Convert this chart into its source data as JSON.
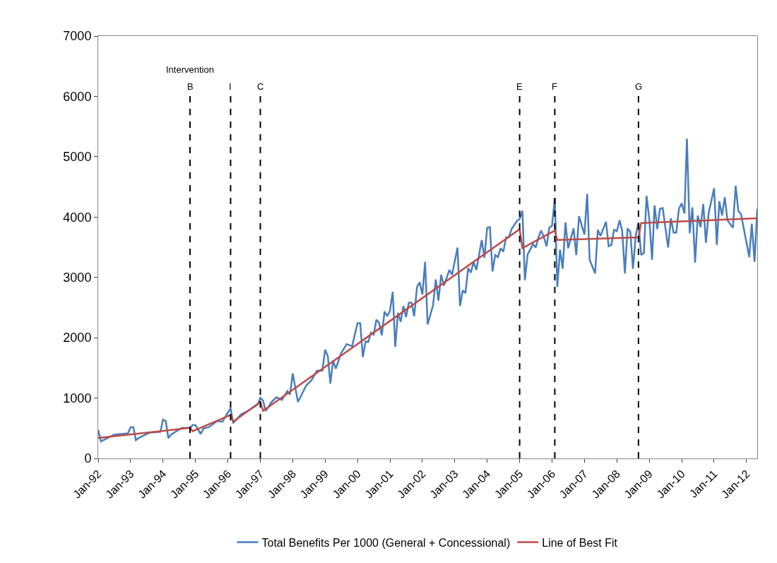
{
  "chart_data": {
    "type": "line",
    "x": [
      "1992-01",
      "1992-02",
      "1992-07",
      "1992-12",
      "1993-01",
      "1993-02",
      "1993-03",
      "1993-04",
      "1993-08",
      "1993-12",
      "1994-01",
      "1994-02",
      "1994-03",
      "1994-04",
      "1994-08",
      "1994-11",
      "1994-12",
      "1995-01",
      "1995-03",
      "1995-04",
      "1995-06",
      "1995-09",
      "1995-11",
      "1996-02",
      "1996-03",
      "1996-06",
      "1996-08",
      "1996-12",
      "1997-01",
      "1997-02",
      "1997-03",
      "1997-04",
      "1997-05",
      "1997-07",
      "1997-09",
      "1997-11",
      "1997-12",
      "1998-01",
      "1998-03",
      "1998-06",
      "1998-08",
      "1998-10",
      "1998-12",
      "1999-01",
      "1999-02",
      "1999-03",
      "1999-04",
      "1999-05",
      "1999-07",
      "1999-09",
      "1999-11",
      "2000-01",
      "2000-02",
      "2000-03",
      "2000-04",
      "2000-05",
      "2000-06",
      "2000-07",
      "2000-08",
      "2000-09",
      "2000-10",
      "2000-11",
      "2000-12",
      "2001-01",
      "2001-02",
      "2001-03",
      "2001-04",
      "2001-05",
      "2001-06",
      "2001-07",
      "2001-08",
      "2001-09",
      "2001-10",
      "2001-11",
      "2001-12",
      "2002-01",
      "2002-02",
      "2002-03",
      "2002-05",
      "2002-06",
      "2002-07",
      "2002-08",
      "2002-09",
      "2002-11",
      "2002-12",
      "2003-02",
      "2003-03",
      "2003-04",
      "2003-05",
      "2003-06",
      "2003-07",
      "2003-08",
      "2003-09",
      "2003-11",
      "2003-12",
      "2004-01",
      "2004-02",
      "2004-03",
      "2004-04",
      "2004-05",
      "2004-06",
      "2004-07",
      "2004-08",
      "2004-09",
      "2004-10",
      "2004-12",
      "2005-01",
      "2005-02",
      "2005-03",
      "2005-04",
      "2005-06",
      "2005-07",
      "2005-08",
      "2005-09",
      "2005-10",
      "2005-11",
      "2005-12",
      "2006-01",
      "2006-02",
      "2006-03",
      "2006-04",
      "2006-05",
      "2006-06",
      "2006-07",
      "2006-09",
      "2006-10",
      "2006-11",
      "2007-01",
      "2007-02",
      "2007-03",
      "2007-05",
      "2007-06",
      "2007-07",
      "2007-09",
      "2007-10",
      "2007-11",
      "2007-12",
      "2008-01",
      "2008-02",
      "2008-03",
      "2008-04",
      "2008-05",
      "2008-06",
      "2008-07",
      "2008-08",
      "2008-09",
      "2008-10",
      "2008-11",
      "2008-12",
      "2009-01",
      "2009-02",
      "2009-03",
      "2009-04",
      "2009-05",
      "2009-06",
      "2009-08",
      "2009-09",
      "2009-10",
      "2009-11",
      "2009-12",
      "2010-01",
      "2010-02",
      "2010-03",
      "2010-04",
      "2010-05",
      "2010-06",
      "2010-07",
      "2010-08",
      "2010-09",
      "2010-10",
      "2010-11",
      "2011-01",
      "2011-02",
      "2011-03",
      "2011-04",
      "2011-05",
      "2011-06",
      "2011-08",
      "2011-09",
      "2011-10",
      "2011-11",
      "2012-02",
      "2012-03",
      "2012-04",
      "2012-05"
    ],
    "series": [
      {
        "name": "Total Benefits Per 1000 (General + Concessional)",
        "color": "#4a7ebb",
        "values": [
          473,
          282,
          395,
          417,
          519,
          519,
          304,
          338,
          428,
          440,
          643,
          620,
          338,
          395,
          507,
          507,
          552,
          552,
          406,
          496,
          519,
          620,
          609,
          834,
          586,
          733,
          778,
          890,
          1003,
          958,
          789,
          846,
          924,
          1015,
          970,
          1116,
          1060,
          1409,
          936,
          1206,
          1297,
          1454,
          1454,
          1804,
          1691,
          1240,
          1623,
          1488,
          1747,
          1894,
          1860,
          2243,
          2243,
          1680,
          1939,
          1928,
          2086,
          2052,
          2300,
          2243,
          2041,
          2435,
          2356,
          2447,
          2762,
          1849,
          2413,
          2266,
          2525,
          2345,
          2582,
          2582,
          2356,
          2841,
          2920,
          2717,
          3258,
          2221,
          2537,
          2965,
          2616,
          3044,
          2864,
          3123,
          3044,
          3495,
          2525,
          2785,
          2740,
          3157,
          3078,
          3258,
          3123,
          3619,
          3326,
          3822,
          3833,
          3100,
          3371,
          3337,
          3484,
          3427,
          3664,
          3664,
          3799,
          3935,
          3968,
          4104,
          2954,
          3382,
          3551,
          3495,
          3664,
          3777,
          3664,
          3517,
          3822,
          3856,
          4318,
          2841,
          3461,
          3145,
          3912,
          3484,
          3811,
          3371,
          4013,
          3709,
          4386,
          3292,
          3067,
          3788,
          3687,
          3923,
          3517,
          3540,
          3788,
          3766,
          3946,
          3777,
          3067,
          3811,
          3754,
          3145,
          3687,
          3912,
          3371,
          3405,
          4352,
          3968,
          3292,
          4194,
          3799,
          4138,
          4149,
          3495,
          3980,
          3743,
          3743,
          4138,
          4228,
          4059,
          5299,
          3732,
          4160,
          3247,
          4025,
          3833,
          4216,
          3574,
          4070,
          4476,
          3540,
          4262,
          4025,
          4329,
          3946,
          3822,
          4521,
          4104,
          4047,
          3337,
          3890,
          3258,
          4138
        ]
      },
      {
        "name": "Line of Best Fit",
        "color": "#be4b48",
        "x": [
          "1992-01",
          "1994-11",
          "1994-12",
          "1996-02",
          "1996-03",
          "1997-01",
          "1997-02",
          "2005-01",
          "2005-02",
          "2006-02",
          "2006-03",
          "2008-09",
          "2008-10",
          "2012-05"
        ],
        "values": [
          338,
          507,
          451,
          722,
          609,
          936,
          789,
          3799,
          3484,
          3777,
          3619,
          3664,
          3901,
          3980
        ]
      }
    ],
    "xlim": [
      "1992-01",
      "2012-05"
    ],
    "xticks": [
      {
        "value": "1992-01",
        "label": "Jan-92"
      },
      {
        "value": "1993-01",
        "label": "Jan-93"
      },
      {
        "value": "1994-01",
        "label": "Jan-94"
      },
      {
        "value": "1995-01",
        "label": "Jan-95"
      },
      {
        "value": "1996-01",
        "label": "Jan-96"
      },
      {
        "value": "1997-01",
        "label": "Jan-97"
      },
      {
        "value": "1998-01",
        "label": "Jan-98"
      },
      {
        "value": "1999-01",
        "label": "Jan-99"
      },
      {
        "value": "2000-01",
        "label": "Jan-00"
      },
      {
        "value": "2001-01",
        "label": "Jan-01"
      },
      {
        "value": "2002-01",
        "label": "Jan-02"
      },
      {
        "value": "2003-01",
        "label": "Jan-03"
      },
      {
        "value": "2004-01",
        "label": "Jan-04"
      },
      {
        "value": "2005-01",
        "label": "Jan-05"
      },
      {
        "value": "2006-01",
        "label": "Jan-06"
      },
      {
        "value": "2007-01",
        "label": "Jan-07"
      },
      {
        "value": "2008-01",
        "label": "Jan-08"
      },
      {
        "value": "2009-01",
        "label": "Jan-09"
      },
      {
        "value": "2010-01",
        "label": "Jan-10"
      },
      {
        "value": "2011-01",
        "label": "Jan-11"
      },
      {
        "value": "2012-01",
        "label": "Jan-12"
      }
    ],
    "ylim": [
      0,
      7000
    ],
    "yticks": [
      0,
      1000,
      2000,
      3000,
      4000,
      5000,
      6000,
      7000
    ],
    "ref_lines": [
      {
        "axis": "x",
        "value": "1994-11",
        "label": "B",
        "color": "#000000",
        "line_style": "dashed"
      },
      {
        "axis": "x",
        "value": "1996-02",
        "label": "I",
        "color": "#000000",
        "line_style": "dashed"
      },
      {
        "axis": "x",
        "value": "1997-01",
        "label": "C",
        "color": "#000000",
        "line_style": "dashed"
      },
      {
        "axis": "x",
        "value": "2005-01",
        "label": "E",
        "color": "#000000",
        "line_style": "dashed"
      },
      {
        "axis": "x",
        "value": "2006-02",
        "label": "F",
        "color": "#000000",
        "line_style": "dashed"
      },
      {
        "axis": "x",
        "value": "2008-09",
        "label": "G",
        "color": "#000000",
        "line_style": "dashed"
      }
    ],
    "annotations": [
      "Intervention"
    ],
    "grid": false,
    "legend": "bottom",
    "marker": "none",
    "line_style": "solid"
  }
}
